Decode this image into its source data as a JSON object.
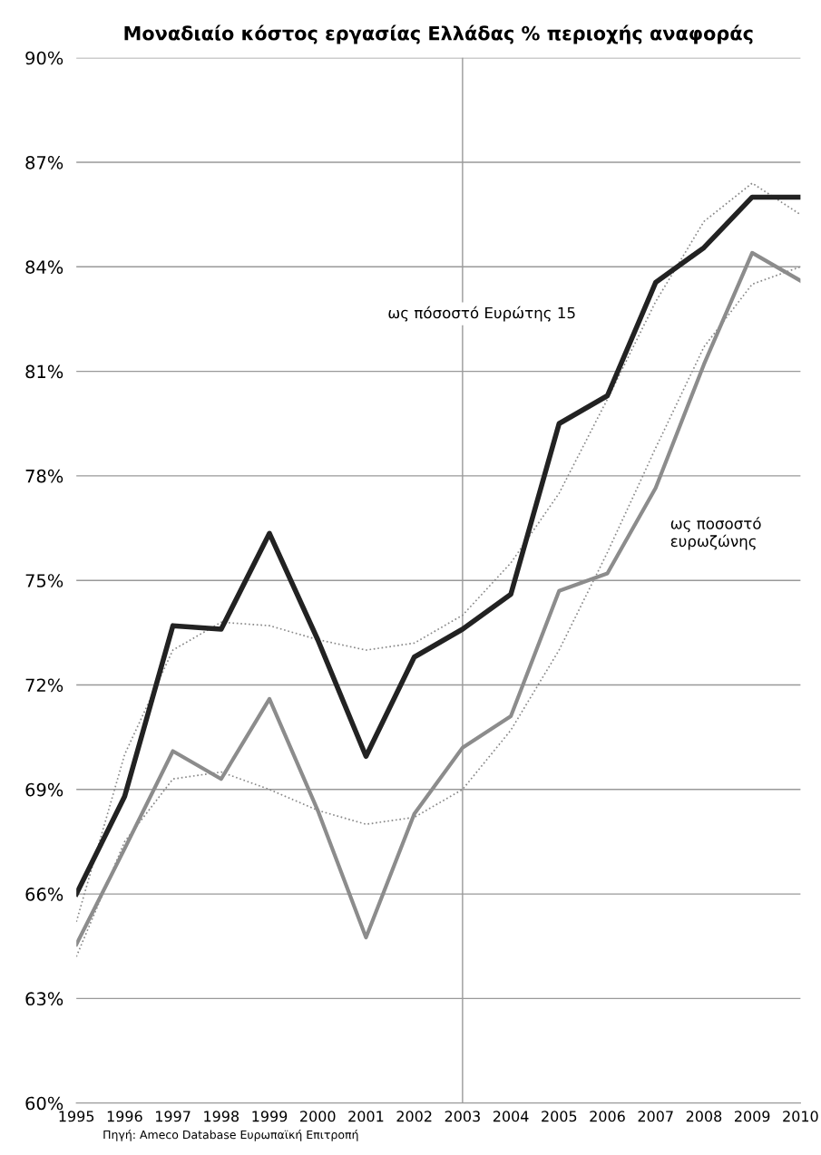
{
  "chart_data": {
    "type": "line",
    "title": "Μοναδιαίο κόστος εργασίας Ελλάδας % περιοχής αναφοράς",
    "x": [
      1995,
      1996,
      1997,
      1998,
      1999,
      2000,
      2001,
      2002,
      2003,
      2004,
      2005,
      2006,
      2007,
      2008,
      2009,
      2010
    ],
    "series": [
      {
        "color": "#222222",
        "values": [
          66.0,
          68.8,
          73.7,
          73.6,
          76.35,
          73.3,
          69.95,
          72.8,
          73.6,
          74.6,
          79.5,
          80.3,
          83.55,
          84.55,
          86.0,
          86.0
        ]
      },
      {
        "color": "#8c8c8c",
        "values": [
          64.55,
          67.3,
          70.1,
          69.3,
          71.6,
          68.4,
          64.75,
          68.3,
          70.2,
          71.1,
          74.7,
          75.2,
          77.65,
          81.2,
          84.4,
          83.6
        ]
      },
      {
        "color": "#888888",
        "line_style": "dotted",
        "values": [
          65.2,
          70.0,
          73.0,
          73.8,
          73.7,
          73.3,
          73.0,
          73.2,
          74.0,
          75.5,
          77.5,
          80.2,
          83.0,
          85.3,
          86.4,
          85.5
        ]
      },
      {
        "color": "#888888",
        "line_style": "dotted",
        "values": [
          64.2,
          67.5,
          69.3,
          69.5,
          69.0,
          68.4,
          68.0,
          68.2,
          69.0,
          70.7,
          73.0,
          75.8,
          78.8,
          81.7,
          83.5,
          84.0
        ]
      }
    ],
    "xlim": [
      1995,
      2010
    ],
    "xticks": [
      1995,
      1996,
      1997,
      1998,
      1999,
      2000,
      2001,
      2002,
      2003,
      2004,
      2005,
      2006,
      2007,
      2008,
      2009,
      2010
    ],
    "ylim": [
      60,
      90
    ],
    "yticks": [
      {
        "value": 60,
        "label": "60%"
      },
      {
        "value": 63,
        "label": "63%"
      },
      {
        "value": 66,
        "label": "66%"
      },
      {
        "value": 69,
        "label": "69%"
      },
      {
        "value": 72,
        "label": "72%"
      },
      {
        "value": 75,
        "label": "75%"
      },
      {
        "value": 78,
        "label": "78%"
      },
      {
        "value": 81,
        "label": "81%"
      },
      {
        "value": 84,
        "label": "84%"
      },
      {
        "value": 87,
        "label": "87%"
      },
      {
        "value": 90,
        "label": "90%"
      }
    ],
    "grid": "y",
    "ref_lines": [
      {
        "axis": "x",
        "value": 2003,
        "color": "#999999"
      }
    ],
    "annotations": [
      "ως πόσοστό Ευρώτης 15",
      "ως ποσοστό\nευρωζώνης",
      "Πηγή: Ameco Database Ευρωπαϊκή Επιτροπή"
    ]
  }
}
